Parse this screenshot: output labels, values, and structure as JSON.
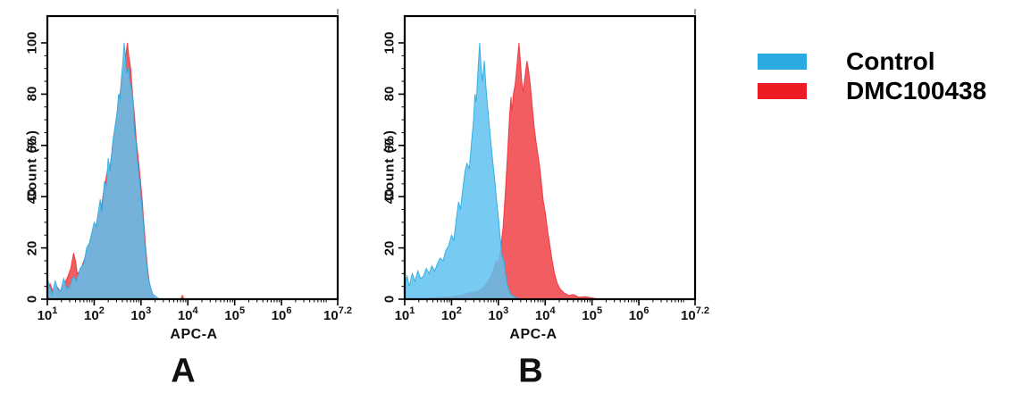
{
  "figure": {
    "background": "#ffffff"
  },
  "colors": {
    "legend_blue": "#29abe2",
    "legend_red": "#ed1c24",
    "hist_blue_fill": "#6ac8f0",
    "hist_red_fill": "#f4696f",
    "overlap_gray_blue": "#7e96b8",
    "axis_black": "#000000"
  },
  "legend": {
    "items": [
      {
        "label": "Control",
        "color": "#29abe2"
      },
      {
        "label": "DMC100438",
        "color": "#ed1c24"
      }
    ]
  },
  "chart_data": [
    {
      "type": "area",
      "panel_label": "A",
      "xlabel": "APC-A",
      "ylabel": "Count (%)",
      "x_scale": "log10",
      "x_range_log10": [
        1,
        7.2
      ],
      "ylim": [
        0,
        100
      ],
      "grid": false,
      "legend_position": "outside-right",
      "x_ticks": [
        {
          "log10": 1,
          "base": "10",
          "exp": "1"
        },
        {
          "log10": 2,
          "base": "10",
          "exp": "2"
        },
        {
          "log10": 3,
          "base": "10",
          "exp": "3"
        },
        {
          "log10": 4,
          "base": "10",
          "exp": "4"
        },
        {
          "log10": 5,
          "base": "10",
          "exp": "5"
        },
        {
          "log10": 6,
          "base": "10",
          "exp": "6"
        },
        {
          "log10": 7.2,
          "base": "10",
          "exp": "7.2"
        }
      ],
      "y_ticks": [
        0,
        20,
        40,
        60,
        80,
        100
      ],
      "series": [
        {
          "name": "DMC100438",
          "color": "#ed1c24",
          "points_log10x_pct": [
            [
              1.0,
              0
            ],
            [
              1.0,
              4
            ],
            [
              1.06,
              6
            ],
            [
              1.12,
              3
            ],
            [
              1.2,
              5
            ],
            [
              1.28,
              3
            ],
            [
              1.36,
              6
            ],
            [
              1.44,
              9
            ],
            [
              1.5,
              12
            ],
            [
              1.56,
              18
            ],
            [
              1.6,
              15
            ],
            [
              1.64,
              10
            ],
            [
              1.7,
              11
            ],
            [
              1.78,
              15
            ],
            [
              1.85,
              19
            ],
            [
              1.92,
              23
            ],
            [
              1.98,
              27
            ],
            [
              2.04,
              29
            ],
            [
              2.1,
              34
            ],
            [
              2.16,
              37
            ],
            [
              2.22,
              44
            ],
            [
              2.28,
              50
            ],
            [
              2.34,
              52
            ],
            [
              2.4,
              60
            ],
            [
              2.46,
              67
            ],
            [
              2.52,
              76
            ],
            [
              2.58,
              84
            ],
            [
              2.63,
              90
            ],
            [
              2.68,
              96
            ],
            [
              2.71,
              100
            ],
            [
              2.74,
              95
            ],
            [
              2.78,
              90
            ],
            [
              2.82,
              80
            ],
            [
              2.86,
              72
            ],
            [
              2.9,
              62
            ],
            [
              2.94,
              55
            ],
            [
              2.98,
              48
            ],
            [
              3.02,
              40
            ],
            [
              3.06,
              30
            ],
            [
              3.1,
              20
            ],
            [
              3.14,
              12
            ],
            [
              3.18,
              6
            ],
            [
              3.24,
              2
            ],
            [
              3.3,
              0
            ],
            [
              3.85,
              0
            ],
            [
              3.88,
              1.5
            ],
            [
              3.92,
              0
            ]
          ]
        },
        {
          "name": "Control",
          "color": "#29abe2",
          "points_log10x_pct": [
            [
              1.0,
              0
            ],
            [
              1.0,
              8
            ],
            [
              1.05,
              5
            ],
            [
              1.1,
              2
            ],
            [
              1.17,
              7
            ],
            [
              1.22,
              4
            ],
            [
              1.28,
              3
            ],
            [
              1.35,
              8
            ],
            [
              1.42,
              4
            ],
            [
              1.48,
              5
            ],
            [
              1.55,
              9
            ],
            [
              1.62,
              7
            ],
            [
              1.7,
              12
            ],
            [
              1.78,
              14
            ],
            [
              1.84,
              20
            ],
            [
              1.9,
              22
            ],
            [
              1.95,
              26
            ],
            [
              2.0,
              30
            ],
            [
              2.04,
              28
            ],
            [
              2.08,
              33
            ],
            [
              2.13,
              39
            ],
            [
              2.16,
              34
            ],
            [
              2.22,
              46
            ],
            [
              2.26,
              44
            ],
            [
              2.3,
              55
            ],
            [
              2.34,
              50
            ],
            [
              2.4,
              62
            ],
            [
              2.45,
              68
            ],
            [
              2.49,
              73
            ],
            [
              2.52,
              80
            ],
            [
              2.55,
              78
            ],
            [
              2.58,
              86
            ],
            [
              2.61,
              92
            ],
            [
              2.64,
              100
            ],
            [
              2.67,
              94
            ],
            [
              2.7,
              88
            ],
            [
              2.73,
              91
            ],
            [
              2.77,
              84
            ],
            [
              2.8,
              82
            ],
            [
              2.84,
              75
            ],
            [
              2.86,
              65
            ],
            [
              2.89,
              62
            ],
            [
              2.92,
              55
            ],
            [
              2.95,
              50
            ],
            [
              2.98,
              45
            ],
            [
              3.01,
              38
            ],
            [
              3.05,
              30
            ],
            [
              3.08,
              22
            ],
            [
              3.12,
              14
            ],
            [
              3.16,
              8
            ],
            [
              3.2,
              5
            ],
            [
              3.25,
              2
            ],
            [
              3.32,
              1
            ],
            [
              3.4,
              0
            ]
          ]
        }
      ]
    },
    {
      "type": "area",
      "panel_label": "B",
      "xlabel": "APC-A",
      "ylabel": "Count (%)",
      "x_scale": "log10",
      "x_range_log10": [
        1,
        7.2
      ],
      "ylim": [
        0,
        100
      ],
      "grid": false,
      "legend_position": "outside-right",
      "x_ticks": [
        {
          "log10": 1,
          "base": "10",
          "exp": "1"
        },
        {
          "log10": 2,
          "base": "10",
          "exp": "2"
        },
        {
          "log10": 3,
          "base": "10",
          "exp": "3"
        },
        {
          "log10": 4,
          "base": "10",
          "exp": "4"
        },
        {
          "log10": 5,
          "base": "10",
          "exp": "5"
        },
        {
          "log10": 6,
          "base": "10",
          "exp": "6"
        },
        {
          "log10": 7.2,
          "base": "10",
          "exp": "7.2"
        }
      ],
      "y_ticks": [
        0,
        20,
        40,
        60,
        80,
        100
      ],
      "series": [
        {
          "name": "DMC100438",
          "color": "#ed1c24",
          "points_log10x_pct": [
            [
              1.4,
              0
            ],
            [
              1.6,
              0.5
            ],
            [
              1.8,
              0.8
            ],
            [
              2.0,
              1
            ],
            [
              2.2,
              1.5
            ],
            [
              2.4,
              2.5
            ],
            [
              2.55,
              3
            ],
            [
              2.65,
              4
            ],
            [
              2.75,
              6
            ],
            [
              2.85,
              9
            ],
            [
              2.92,
              13
            ],
            [
              2.96,
              15
            ],
            [
              3.0,
              14
            ],
            [
              3.05,
              20
            ],
            [
              3.1,
              28
            ],
            [
              3.15,
              42
            ],
            [
              3.2,
              58
            ],
            [
              3.24,
              72
            ],
            [
              3.27,
              79
            ],
            [
              3.29,
              73
            ],
            [
              3.32,
              80
            ],
            [
              3.36,
              84
            ],
            [
              3.4,
              92
            ],
            [
              3.44,
              100
            ],
            [
              3.47,
              93
            ],
            [
              3.5,
              85
            ],
            [
              3.53,
              81
            ],
            [
              3.57,
              87
            ],
            [
              3.61,
              93
            ],
            [
              3.64,
              90
            ],
            [
              3.68,
              84
            ],
            [
              3.72,
              76
            ],
            [
              3.76,
              68
            ],
            [
              3.8,
              62
            ],
            [
              3.84,
              57
            ],
            [
              3.88,
              52
            ],
            [
              3.92,
              45
            ],
            [
              3.96,
              38
            ],
            [
              4.0,
              34
            ],
            [
              4.05,
              27
            ],
            [
              4.1,
              21
            ],
            [
              4.15,
              15
            ],
            [
              4.2,
              10
            ],
            [
              4.26,
              6
            ],
            [
              4.32,
              4
            ],
            [
              4.4,
              2.5
            ],
            [
              4.5,
              1.5
            ],
            [
              4.6,
              1.8
            ],
            [
              4.72,
              0.8
            ],
            [
              4.85,
              1
            ],
            [
              5.0,
              0.5
            ],
            [
              5.15,
              0
            ]
          ]
        },
        {
          "name": "Control",
          "color": "#29abe2",
          "points_log10x_pct": [
            [
              1.0,
              0
            ],
            [
              1.0,
              6
            ],
            [
              1.05,
              9
            ],
            [
              1.1,
              5
            ],
            [
              1.16,
              10
            ],
            [
              1.22,
              7
            ],
            [
              1.28,
              11
            ],
            [
              1.34,
              8
            ],
            [
              1.4,
              9
            ],
            [
              1.46,
              12
            ],
            [
              1.52,
              10
            ],
            [
              1.58,
              13
            ],
            [
              1.64,
              11
            ],
            [
              1.7,
              14
            ],
            [
              1.76,
              16
            ],
            [
              1.82,
              15
            ],
            [
              1.88,
              19
            ],
            [
              1.94,
              21
            ],
            [
              2.0,
              25
            ],
            [
              2.05,
              23
            ],
            [
              2.1,
              31
            ],
            [
              2.15,
              38
            ],
            [
              2.19,
              35
            ],
            [
              2.24,
              43
            ],
            [
              2.29,
              50
            ],
            [
              2.33,
              53
            ],
            [
              2.38,
              51
            ],
            [
              2.43,
              62
            ],
            [
              2.47,
              70
            ],
            [
              2.5,
              80
            ],
            [
              2.53,
              77
            ],
            [
              2.56,
              88
            ],
            [
              2.6,
              100
            ],
            [
              2.63,
              91
            ],
            [
              2.66,
              85
            ],
            [
              2.7,
              93
            ],
            [
              2.73,
              84
            ],
            [
              2.76,
              77
            ],
            [
              2.8,
              69
            ],
            [
              2.84,
              61
            ],
            [
              2.88,
              54
            ],
            [
              2.92,
              47
            ],
            [
              2.96,
              39
            ],
            [
              3.0,
              32
            ],
            [
              3.04,
              24
            ],
            [
              3.08,
              17
            ],
            [
              3.12,
              15
            ],
            [
              3.16,
              9
            ],
            [
              3.2,
              5
            ],
            [
              3.26,
              2
            ],
            [
              3.34,
              1
            ],
            [
              3.45,
              0
            ]
          ]
        }
      ]
    }
  ]
}
